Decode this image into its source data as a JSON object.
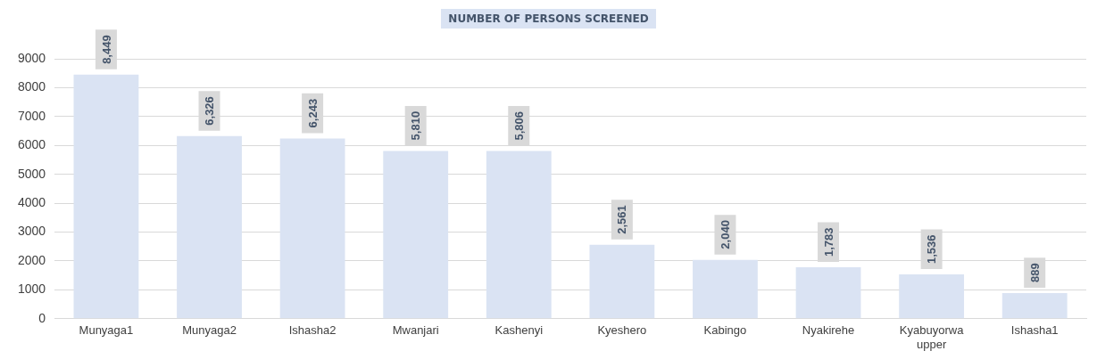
{
  "chart_data": {
    "type": "bar",
    "title": "NUMBER OF PERSONS SCREENED",
    "categories": [
      "Munyaga1",
      "Munyaga2",
      "Ishasha2",
      "Mwanjari",
      "Kashenyi",
      "Kyeshero",
      "Kabingo",
      "Nyakirehe",
      "Kyabuyorwa upper",
      "Ishasha1"
    ],
    "values": [
      8449,
      6326,
      6243,
      5810,
      5806,
      2561,
      2040,
      1783,
      1536,
      889
    ],
    "value_labels": [
      "8,449",
      "6,326",
      "6,243",
      "5,810",
      "5,806",
      "2,561",
      "2,040",
      "1,783",
      "1,536",
      "889"
    ],
    "color": "#dae3f3",
    "ylim": [
      0,
      9000
    ],
    "yticks": [
      0,
      1000,
      2000,
      3000,
      4000,
      5000,
      6000,
      7000,
      8000,
      9000
    ],
    "grid": "y",
    "legend": false
  }
}
